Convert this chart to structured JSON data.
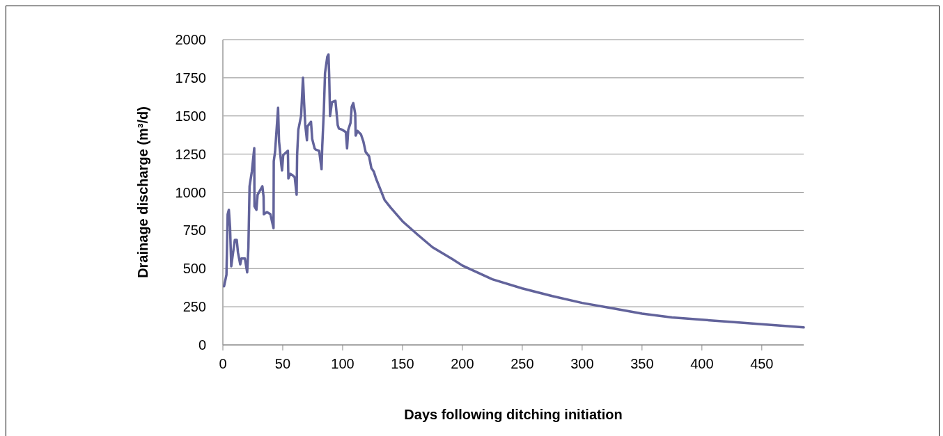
{
  "chart_data": {
    "type": "line",
    "xlabel": "Days following ditching initiation",
    "ylabel": "Drainage discharge (m³/d)",
    "xlim": [
      0,
      485
    ],
    "xticks": [
      0,
      50,
      100,
      150,
      200,
      250,
      300,
      350,
      400,
      450
    ],
    "ylim": [
      0,
      2000
    ],
    "yticks": [
      0,
      250,
      500,
      750,
      1000,
      1250,
      1500,
      1750,
      2000
    ],
    "grid": "y",
    "marker": "none",
    "line_style": "solid",
    "series": [
      {
        "color": "#62639b",
        "x": [
          1,
          3,
          4,
          5,
          6,
          7,
          8,
          10,
          11.6,
          12.6,
          14.5,
          15.5,
          18.4,
          20.3,
          21.3,
          22.3,
          24.2,
          26.2,
          26.4,
          28,
          29,
          33,
          34,
          34.2,
          36.8,
          39.7,
          42.3,
          42.5,
          43.6,
          46.1,
          46.9,
          48.8,
          49.4,
          50.4,
          54.3,
          54.7,
          56.2,
          58,
          60,
          61.6,
          62,
          63,
          65.3,
          66.9,
          67.8,
          68.8,
          70.2,
          70.7,
          73.6,
          74.6,
          76.6,
          77.5,
          80.4,
          82.4,
          83,
          84.3,
          85.3,
          87.2,
          88.2,
          88.8,
          89.5,
          91.1,
          94,
          95.9,
          96.9,
          99.8,
          102.7,
          103.7,
          104.7,
          106.6,
          107.6,
          108.9,
          110.5,
          110.9,
          112.4,
          115.3,
          117.3,
          119.2,
          122.1,
          124,
          126,
          127.9,
          135,
          140,
          150,
          163,
          175,
          192,
          200,
          225,
          250,
          275,
          300,
          325,
          350,
          375,
          400,
          425,
          450,
          485
        ],
        "values": [
          384,
          460,
          856,
          885,
          771,
          515,
          574,
          688,
          688,
          606,
          528,
          566,
          566,
          475,
          635,
          1039,
          1136,
          1289,
          908,
          885,
          984,
          1039,
          970,
          856,
          870,
          856,
          765,
          1204,
          1266,
          1553,
          1335,
          1181,
          1143,
          1244,
          1272,
          1090,
          1121,
          1113,
          1098,
          984,
          1242,
          1409,
          1500,
          1751,
          1591,
          1440,
          1341,
          1432,
          1462,
          1349,
          1288,
          1280,
          1272,
          1151,
          1303,
          1531,
          1781,
          1888,
          1903,
          1758,
          1500,
          1591,
          1599,
          1440,
          1417,
          1409,
          1394,
          1288,
          1409,
          1455,
          1561,
          1584,
          1515,
          1371,
          1402,
          1379,
          1333,
          1265,
          1235,
          1158,
          1136,
          1090,
          950,
          900,
          810,
          720,
          640,
          560,
          520,
          430,
          370,
          320,
          275,
          240,
          205,
          180,
          165,
          150,
          135,
          115
        ]
      }
    ]
  }
}
